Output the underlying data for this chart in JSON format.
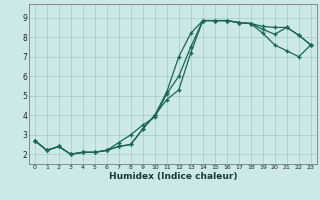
{
  "xlabel": "Humidex (Indice chaleur)",
  "bg_color": "#cce8e8",
  "grid_color": "#aacece",
  "line_color": "#1a6655",
  "xlim": [
    -0.5,
    23.5
  ],
  "ylim": [
    1.5,
    9.7
  ],
  "xticks": [
    0,
    1,
    2,
    3,
    4,
    5,
    6,
    7,
    8,
    9,
    10,
    11,
    12,
    13,
    14,
    15,
    16,
    17,
    18,
    19,
    20,
    21,
    22,
    23
  ],
  "yticks": [
    2,
    3,
    4,
    5,
    6,
    7,
    8,
    9
  ],
  "line1_x": [
    0,
    1,
    2,
    3,
    4,
    5,
    6,
    7,
    8,
    9,
    10,
    11,
    12,
    13,
    14,
    15,
    16,
    17,
    18,
    19,
    20,
    21,
    22,
    23
  ],
  "line1_y": [
    2.7,
    2.2,
    2.4,
    2.0,
    2.1,
    2.1,
    2.2,
    2.4,
    2.5,
    3.3,
    4.0,
    5.2,
    7.0,
    8.2,
    8.85,
    8.85,
    8.85,
    8.75,
    8.7,
    8.55,
    8.5,
    8.5,
    8.1,
    7.6
  ],
  "line2_x": [
    0,
    1,
    2,
    3,
    4,
    5,
    6,
    7,
    8,
    9,
    10,
    11,
    12,
    13,
    14,
    15,
    16,
    17,
    18,
    19,
    20,
    21,
    22,
    23
  ],
  "line2_y": [
    2.7,
    2.2,
    2.4,
    2.0,
    2.1,
    2.1,
    2.2,
    2.4,
    2.5,
    3.3,
    4.0,
    4.8,
    5.3,
    7.2,
    8.85,
    8.85,
    8.85,
    8.75,
    8.7,
    8.4,
    8.15,
    8.5,
    8.1,
    7.6
  ],
  "line3_x": [
    0,
    1,
    2,
    3,
    4,
    5,
    6,
    7,
    8,
    9,
    10,
    11,
    12,
    13,
    14,
    15,
    16,
    17,
    18,
    19,
    20,
    21,
    22,
    23
  ],
  "line3_y": [
    2.7,
    2.2,
    2.4,
    2.0,
    2.1,
    2.1,
    2.2,
    2.6,
    3.0,
    3.5,
    3.9,
    5.1,
    6.0,
    7.5,
    8.85,
    8.85,
    8.85,
    8.75,
    8.7,
    8.2,
    7.6,
    7.3,
    7.0,
    7.6
  ]
}
